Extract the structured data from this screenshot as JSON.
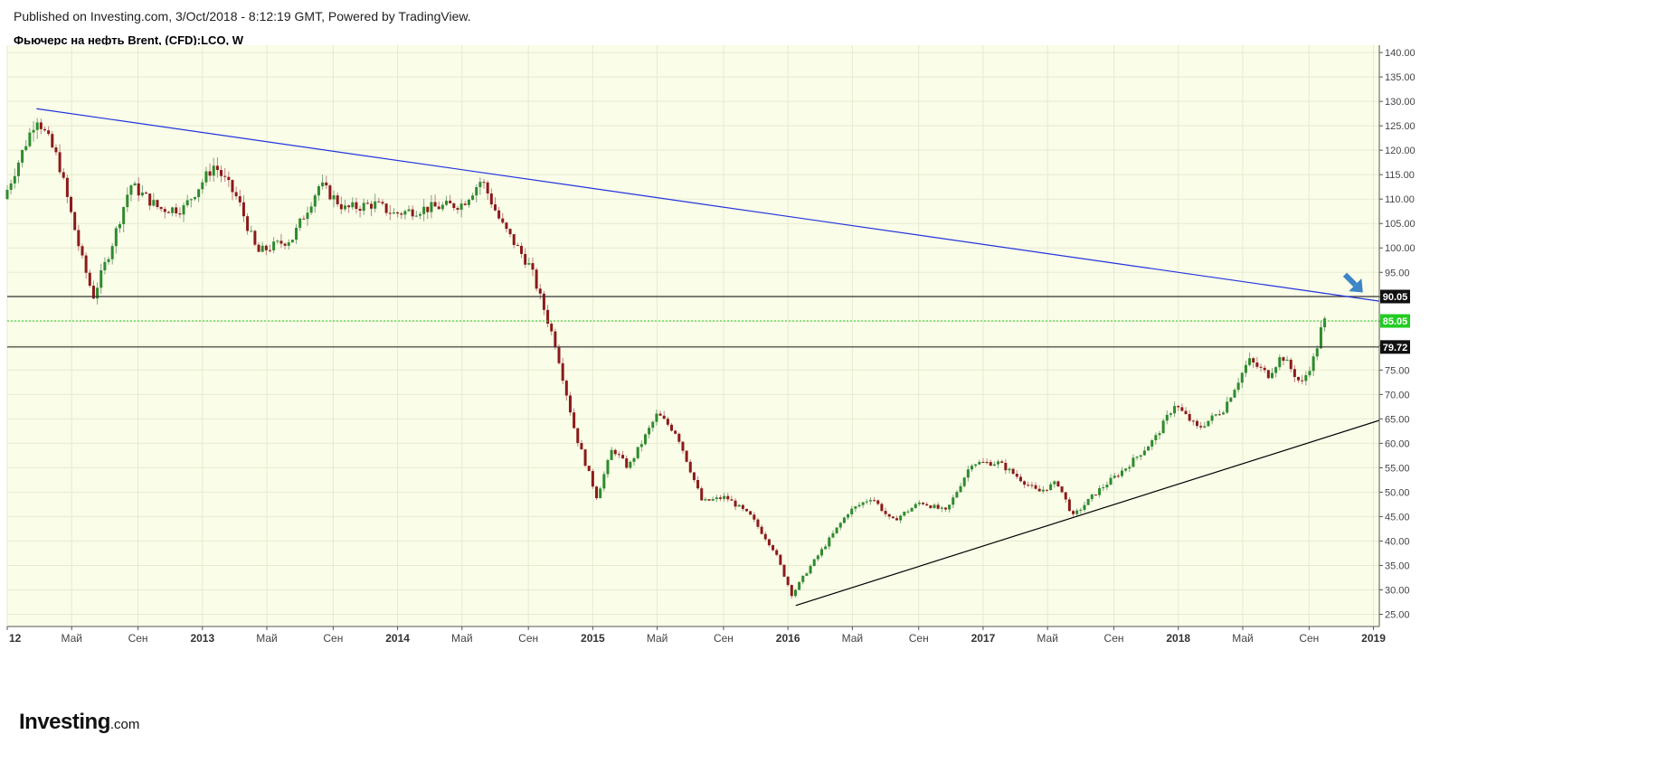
{
  "header": {
    "published": "Published on Investing.com, 3/Oct/2018 - 8:12:19 GMT, Powered by TradingView.",
    "symbol": "Фьючерс на нефть Brent, (CFD):LCO, W"
  },
  "logo": {
    "main": "Investing",
    "suffix": ".com"
  },
  "colors": {
    "plot_bg": "#fafde8",
    "up": "#2e8b2e",
    "down": "#8b1a1a",
    "trendline_upper": "#2233dd",
    "trendline_lower": "#000000",
    "level_line": "#333333",
    "current_price": "#22cc22",
    "arrow": "#3d85c6"
  },
  "chart_data": {
    "type": "candlestick",
    "title": "Фьючерс на нефть Brent, (CFD):LCO, W",
    "ylim": [
      22.5,
      141.5
    ],
    "y_ticks": [
      "25.00",
      "30.00",
      "35.00",
      "40.00",
      "45.00",
      "50.00",
      "55.00",
      "60.00",
      "65.00",
      "70.00",
      "75.00",
      "80.00",
      "85.00",
      "90.00",
      "95.00",
      "100.00",
      "105.00",
      "110.00",
      "115.00",
      "120.00",
      "125.00",
      "130.00",
      "135.00",
      "140.00"
    ],
    "x_ticks": [
      {
        "label": "12",
        "t": 2012.0,
        "year": true
      },
      {
        "label": "Май",
        "t": 2012.33
      },
      {
        "label": "Сен",
        "t": 2012.67
      },
      {
        "label": "2013",
        "t": 2013.0,
        "year": true
      },
      {
        "label": "Май",
        "t": 2013.33
      },
      {
        "label": "Сен",
        "t": 2013.67
      },
      {
        "label": "2014",
        "t": 2014.0,
        "year": true
      },
      {
        "label": "Май",
        "t": 2014.33
      },
      {
        "label": "Сен",
        "t": 2014.67
      },
      {
        "label": "2015",
        "t": 2015.0,
        "year": true
      },
      {
        "label": "Май",
        "t": 2015.33
      },
      {
        "label": "Сен",
        "t": 2015.67
      },
      {
        "label": "2016",
        "t": 2016.0,
        "year": true
      },
      {
        "label": "Май",
        "t": 2016.33
      },
      {
        "label": "Сен",
        "t": 2016.67
      },
      {
        "label": "2017",
        "t": 2017.0,
        "year": true
      },
      {
        "label": "Май",
        "t": 2017.33
      },
      {
        "label": "Сен",
        "t": 2017.67
      },
      {
        "label": "2018",
        "t": 2018.0,
        "year": true
      },
      {
        "label": "Май",
        "t": 2018.33
      },
      {
        "label": "Сен",
        "t": 2018.67
      },
      {
        "label": "2019",
        "t": 2019.0,
        "year": true
      }
    ],
    "xlim": [
      2012.0,
      2019.03
    ],
    "price_key_points": [
      [
        2012.0,
        110
      ],
      [
        2012.08,
        118
      ],
      [
        2012.17,
        127
      ],
      [
        2012.28,
        118
      ],
      [
        2012.4,
        98
      ],
      [
        2012.46,
        90
      ],
      [
        2012.55,
        100
      ],
      [
        2012.65,
        113
      ],
      [
        2012.8,
        108
      ],
      [
        2012.92,
        108
      ],
      [
        2013.08,
        117
      ],
      [
        2013.2,
        110
      ],
      [
        2013.3,
        99
      ],
      [
        2013.48,
        102
      ],
      [
        2013.62,
        113
      ],
      [
        2013.75,
        108
      ],
      [
        2013.9,
        109
      ],
      [
        2014.0,
        107
      ],
      [
        2014.15,
        108
      ],
      [
        2014.35,
        109
      ],
      [
        2014.45,
        114
      ],
      [
        2014.55,
        105
      ],
      [
        2014.7,
        96
      ],
      [
        2014.83,
        80
      ],
      [
        2014.93,
        62
      ],
      [
        2015.04,
        49
      ],
      [
        2015.12,
        59
      ],
      [
        2015.2,
        55
      ],
      [
        2015.35,
        66
      ],
      [
        2015.45,
        62
      ],
      [
        2015.58,
        48
      ],
      [
        2015.7,
        49
      ],
      [
        2015.83,
        45
      ],
      [
        2015.95,
        38
      ],
      [
        2016.04,
        29
      ],
      [
        2016.12,
        34
      ],
      [
        2016.33,
        46
      ],
      [
        2016.45,
        49
      ],
      [
        2016.55,
        44
      ],
      [
        2016.7,
        48
      ],
      [
        2016.83,
        46
      ],
      [
        2016.96,
        56
      ],
      [
        2017.1,
        56
      ],
      [
        2017.3,
        50
      ],
      [
        2017.4,
        52
      ],
      [
        2017.48,
        45
      ],
      [
        2017.6,
        50
      ],
      [
        2017.75,
        55
      ],
      [
        2017.9,
        61
      ],
      [
        2018.0,
        68
      ],
      [
        2018.12,
        63
      ],
      [
        2018.25,
        67
      ],
      [
        2018.38,
        77
      ],
      [
        2018.48,
        74
      ],
      [
        2018.55,
        78
      ],
      [
        2018.65,
        72
      ],
      [
        2018.72,
        78
      ],
      [
        2018.76,
        85
      ]
    ],
    "last_price": "85.05",
    "horizontal_levels": [
      {
        "value": 90.05,
        "label": "90.05"
      },
      {
        "value": 79.72,
        "label": "79.72"
      }
    ],
    "current_price_line": {
      "value": 85.05,
      "label": "85.05"
    },
    "trendlines": [
      {
        "name": "upper",
        "from": [
          2012.15,
          128.5
        ],
        "to": [
          2019.03,
          89.1
        ]
      },
      {
        "name": "lower",
        "from": [
          2016.04,
          26.8
        ],
        "to": [
          2019.03,
          64.7
        ]
      }
    ],
    "arrow_annotation": {
      "t": 2018.88,
      "price": 93.5
    }
  }
}
